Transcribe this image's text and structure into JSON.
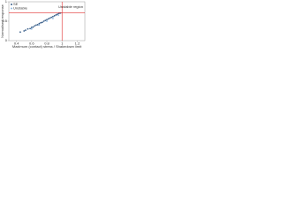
{
  "chart_data": {
    "type": "scatter",
    "xlabel": "Maximum (contact) stress / Shakedown limit",
    "ylabel": "Normalised response",
    "annotation": "Unstable region",
    "xlim": [
      0.3,
      1.3
    ],
    "xticks": [
      0.4,
      0.6,
      0.8,
      1,
      1.2
    ],
    "ylim": [
      0,
      1
    ],
    "yticks": [
      0,
      0.5,
      1
    ],
    "reference_x": 1,
    "reference_y": 0.72,
    "reference_color": "#e03030",
    "legend": "upper left",
    "series": [
      {
        "name": "SE",
        "color": "#3a5f8a",
        "x": [
          0.45,
          0.5,
          0.52,
          0.55,
          0.58,
          0.6,
          0.62,
          0.64,
          0.66,
          0.68,
          0.7,
          0.72,
          0.74,
          0.76,
          0.78,
          0.8,
          0.82,
          0.84,
          0.86,
          0.88,
          0.9,
          0.92,
          0.94,
          0.96,
          0.98
        ],
        "values": [
          0.22,
          0.25,
          0.27,
          0.3,
          0.31,
          0.34,
          0.35,
          0.38,
          0.4,
          0.41,
          0.44,
          0.46,
          0.47,
          0.5,
          0.52,
          0.54,
          0.56,
          0.58,
          0.6,
          0.62,
          0.64,
          0.66,
          0.68,
          0.7,
          0.71
        ]
      },
      {
        "name": "Unstable",
        "color": "#8fb8e0",
        "x": [
          0.6,
          0.7,
          0.8,
          0.88,
          0.95
        ],
        "values": [
          0.3,
          0.4,
          0.5,
          0.57,
          0.65
        ]
      }
    ]
  }
}
